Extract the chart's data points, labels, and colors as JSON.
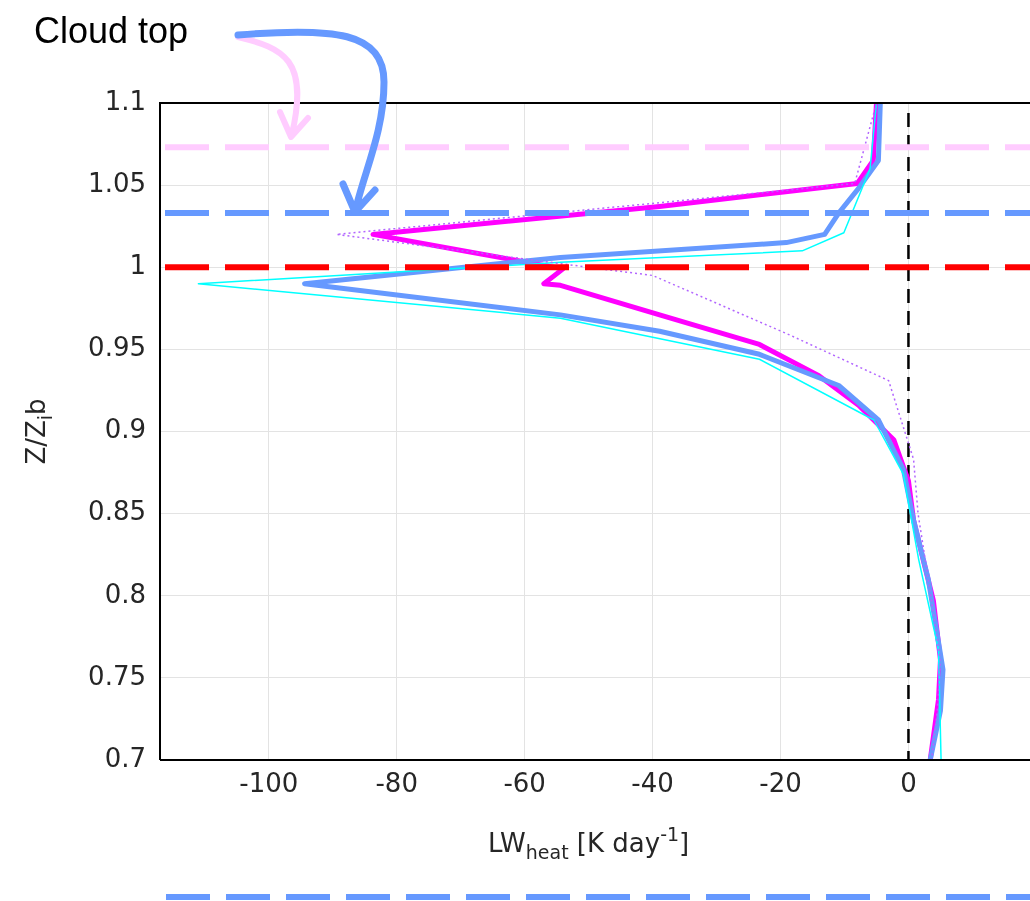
{
  "chart_data": {
    "type": "line",
    "xlabel": "LW$_{heat}$ [K day$^{-1}$]",
    "ylabel": "Z/Z$_{i}$b",
    "annotations": [
      "Cloud top"
    ],
    "xlim": [
      -117,
      19
    ],
    "xticks": [
      -100,
      -80,
      -60,
      -40,
      -20,
      0
    ],
    "ylim": [
      0.7,
      1.1
    ],
    "yticks": [
      0.7,
      0.75,
      0.8,
      0.85,
      0.9,
      0.95,
      1,
      1.05,
      1.1
    ],
    "grid": true,
    "legend": false,
    "ref_lines": [
      {
        "axis": "y",
        "value": 1.073,
        "color": "#ffccff",
        "line_style": "dashed"
      },
      {
        "axis": "y",
        "value": 1.033,
        "color": "#6699ff",
        "line_style": "dashed"
      },
      {
        "axis": "y",
        "value": 1.0,
        "color": "#ff0000",
        "line_style": "dashed"
      },
      {
        "axis": "x",
        "value": 0,
        "color": "#000000",
        "line_style": "dashed"
      }
    ],
    "series": [
      {
        "color": "#b266ff",
        "line_style": "dotted",
        "x": [
          -5,
          -8.4,
          -89.4,
          -54,
          -40,
          -18.7,
          -3.1,
          0.8,
          1.5,
          3.5,
          5,
          4.5,
          3.6
        ],
        "values": [
          1.1,
          1.051,
          1.02,
          1.002,
          0.995,
          0.959,
          0.931,
          0.883,
          0.85,
          0.8,
          0.76,
          0.73,
          0.7
        ]
      },
      {
        "color": "#00ffff",
        "line_style": "solid",
        "x": [
          -5,
          -6,
          -10.1,
          -16.6,
          -54.4,
          -111,
          -54.4,
          -23.3,
          -5.4,
          -0.8,
          1.6,
          4.7,
          5.1
        ],
        "values": [
          1.1,
          1.06,
          1.021,
          1.01,
          1.003,
          0.99,
          0.969,
          0.944,
          0.907,
          0.874,
          0.822,
          0.767,
          0.7
        ]
      },
      {
        "color": "#6699ff",
        "line_style": "solid",
        "x": [
          -4.4,
          -4.7,
          -7.8,
          -10.9,
          -13.1,
          -19.1,
          -54.4,
          -94.4,
          -54.4,
          -38.9,
          -23.3,
          -10.9,
          -4.7,
          -0.8,
          0.8,
          3.1,
          5.4,
          5,
          3.4
        ],
        "values": [
          1.1,
          1.065,
          1.048,
          1.033,
          1.02,
          1.015,
          1.006,
          0.99,
          0.971,
          0.961,
          0.947,
          0.928,
          0.907,
          0.877,
          0.846,
          0.81,
          0.755,
          0.73,
          0.7
        ]
      },
      {
        "color": "#ff00ff",
        "line_style": "solid",
        "x": [
          -5,
          -5.5,
          -8,
          -38.9,
          -83.7,
          -54,
          -57,
          -54.4,
          -38.9,
          -23.3,
          -14,
          -7.8,
          -2.3,
          0,
          0.8,
          2.3,
          3.9,
          5,
          4.7,
          3.4
        ],
        "values": [
          1.1,
          1.065,
          1.051,
          1.037,
          1.02,
          0.999,
          0.99,
          0.989,
          0.971,
          0.953,
          0.934,
          0.916,
          0.895,
          0.87,
          0.846,
          0.822,
          0.797,
          0.761,
          0.737,
          0.7
        ]
      }
    ]
  }
}
